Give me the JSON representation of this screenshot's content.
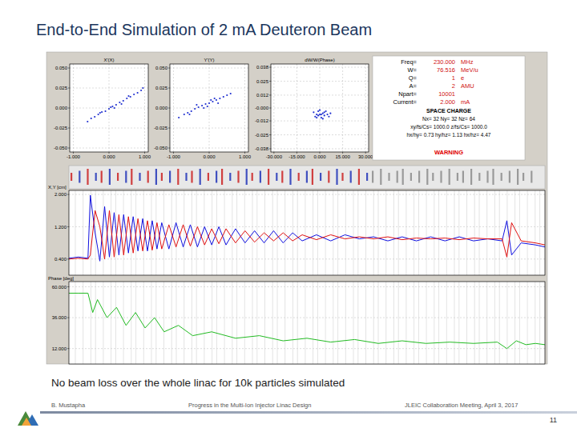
{
  "title": "End-to-End Simulation of 2 mA Deuteron Beam",
  "caption": "No beam loss over the whole linac for 10k particles simulated",
  "footer": {
    "author": "B. Mustapha",
    "talk": "Progress in the Multi-Ion Injector Linac Design",
    "meeting": "JLEIC Collaboration Meeting, April 3, 2017",
    "page": "11"
  },
  "info_panel": {
    "rows": [
      [
        "Freq=",
        "230.000",
        "MHz"
      ],
      [
        "W=",
        "76.516",
        "MeV/u"
      ],
      [
        "Q=",
        "1",
        "e"
      ],
      [
        "A=",
        "2",
        "AMU"
      ],
      [
        "Npart=",
        "10001"
      ],
      [
        "Current=",
        "2.000",
        "mA"
      ]
    ],
    "space_charge": "SPACE CHARGE",
    "space_charge_lines": [
      "Nx= 32  Ny= 32  Nz= 64",
      "xy/fs/Cs= 1000.0  z/fs/Cs= 1000.0",
      "hx/hy= 0.73  hy/hz= 1.13  hx/hz= 4.47"
    ],
    "warning": "WARNING"
  },
  "chart_data": [
    {
      "type": "scatter",
      "title": "X'(X)",
      "color": "#2030d0",
      "marker": "dot",
      "grid": true,
      "x": [
        -0.6,
        -0.5,
        -0.4,
        -0.3,
        -0.2,
        -0.1,
        0,
        0.1,
        0.2,
        0.3,
        0.4,
        0.5,
        0.6,
        0.7,
        0.8,
        0.9,
        0.95,
        0.15,
        0.35,
        0.55,
        -0.25,
        0.05
      ],
      "values": [
        -0.017,
        -0.013,
        -0.011,
        -0.008,
        -0.005,
        -0.004,
        -0.001,
        0.002,
        0.004,
        0.007,
        0.009,
        0.012,
        0.014,
        0.017,
        0.019,
        0.022,
        0.025,
        0.0,
        0.005,
        0.015,
        -0.006,
        0.001
      ],
      "xlim": [
        -1.1,
        1.1
      ],
      "ylim": [
        -0.055,
        0.055
      ],
      "xticks": [
        {
          "value": -1,
          "label": "-1.000"
        },
        {
          "value": 0,
          "label": "0.000"
        },
        {
          "value": 1,
          "label": "1.000"
        }
      ],
      "yticks": [
        {
          "value": 0.05,
          "label": "0.050"
        },
        {
          "value": 0.025,
          "label": "0.025"
        },
        {
          "value": 0,
          "label": "0.000"
        },
        {
          "value": -0.025,
          "label": "-0.025"
        },
        {
          "value": -0.05,
          "label": "-0.050"
        }
      ]
    },
    {
      "type": "scatter",
      "title": "Y'(Y)",
      "color": "#2030d0",
      "marker": "dot",
      "grid": true,
      "x": [
        -0.85,
        -0.7,
        -0.6,
        -0.5,
        -0.4,
        -0.3,
        -0.2,
        -0.1,
        0,
        0.1,
        0.2,
        0.3,
        0.4,
        0.5,
        0.6,
        -0.35,
        -0.15,
        0.05,
        0.25,
        -0.55,
        0.15,
        -0.05
      ],
      "values": [
        -0.012,
        -0.008,
        -0.006,
        -0.004,
        -0.001,
        0.001,
        0.003,
        0.005,
        0.006,
        0.008,
        0.01,
        0.012,
        0.014,
        0.016,
        0.018,
        0.004,
        0.0,
        0.01,
        0.006,
        -0.008,
        0.012,
        0.002
      ],
      "xlim": [
        -1.1,
        1.1
      ],
      "ylim": [
        -0.055,
        0.055
      ],
      "xticks": [
        {
          "value": -1,
          "label": "-1.000"
        },
        {
          "value": 0,
          "label": "0.000"
        },
        {
          "value": 1,
          "label": "1.000"
        }
      ],
      "yticks": [
        {
          "value": 0.05,
          "label": "0.050"
        },
        {
          "value": 0.025,
          "label": "0.025"
        },
        {
          "value": 0,
          "label": "0.000"
        },
        {
          "value": -0.025,
          "label": "-0.025"
        },
        {
          "value": -0.05,
          "label": "-0.050"
        }
      ]
    },
    {
      "type": "scatter",
      "title": "dW/W(Phase)",
      "color": "#2030d0",
      "marker": "dot",
      "grid": true,
      "x": [
        -4,
        -3,
        -2,
        -1,
        0,
        1,
        2,
        3,
        4,
        5,
        6,
        0,
        2,
        -2,
        3,
        1,
        7,
        -1
      ],
      "values": [
        -0.004,
        -0.008,
        -0.006,
        -0.003,
        -0.006,
        -0.009,
        -0.005,
        -0.007,
        -0.003,
        -0.006,
        -0.008,
        -0.002,
        -0.01,
        -0.009,
        -0.004,
        -0.006,
        -0.005,
        -0.007
      ],
      "xlim": [
        -32,
        32
      ],
      "ylim": [
        -0.041,
        0.041
      ],
      "xticks": [
        {
          "value": -30,
          "label": "-30.000"
        },
        {
          "value": -15,
          "label": "-15.000"
        },
        {
          "value": 0,
          "label": "0.000"
        },
        {
          "value": 15,
          "label": "15.000"
        },
        {
          "value": 30,
          "label": "30.000"
        }
      ],
      "yticks": [
        {
          "value": 0.038,
          "label": "0.038"
        },
        {
          "value": 0.025,
          "label": "0.025"
        },
        {
          "value": 0.012,
          "label": "0.012"
        },
        {
          "value": 0,
          "label": "-0.000"
        },
        {
          "value": -0.012,
          "label": "-0.012"
        },
        {
          "value": -0.025,
          "label": "-0.025"
        },
        {
          "value": -0.038,
          "label": "-0.038"
        }
      ]
    },
    {
      "type": "line",
      "y_label": "X,Y [cm]",
      "grid": true,
      "tick_labels": "y",
      "x": [
        0,
        2,
        4,
        4.5,
        5.5,
        6.5,
        7.5,
        8.5,
        9.5,
        10.5,
        11.5,
        12.5,
        13.5,
        14.5,
        15.5,
        16.5,
        17.5,
        18.5,
        19.5,
        21,
        22.5,
        24,
        25.5,
        27,
        28.5,
        30,
        31.5,
        33,
        35,
        37,
        39,
        41,
        43,
        45,
        47,
        49,
        52,
        55,
        58,
        61,
        64,
        67,
        70,
        73,
        76,
        79,
        82,
        85,
        88,
        91,
        92,
        93,
        95,
        98,
        100
      ],
      "series": [
        {
          "color": "#1010e0",
          "line_style": "solid",
          "values": [
            0.42,
            0.45,
            0.42,
            1.98,
            1.05,
            0.35,
            1.7,
            0.45,
            1.55,
            0.5,
            1.5,
            0.55,
            1.45,
            0.6,
            1.4,
            0.6,
            1.35,
            0.65,
            1.3,
            0.65,
            1.3,
            0.7,
            1.25,
            0.7,
            1.2,
            0.75,
            1.2,
            0.75,
            1.15,
            0.8,
            1.1,
            0.8,
            1.1,
            0.8,
            1.05,
            0.85,
            1.0,
            0.85,
            1.0,
            0.9,
            0.95,
            0.85,
            0.95,
            0.85,
            0.95,
            0.85,
            0.95,
            0.85,
            0.9,
            0.85,
            1.35,
            0.5,
            0.8,
            0.75,
            0.7
          ]
        },
        {
          "color": "#e01010",
          "line_style": "solid",
          "values": [
            0.4,
            0.42,
            0.4,
            0.5,
            1.6,
            1.2,
            0.4,
            1.6,
            0.45,
            1.5,
            0.5,
            1.45,
            0.55,
            1.4,
            0.6,
            1.35,
            0.62,
            1.3,
            0.65,
            1.25,
            0.7,
            1.25,
            0.72,
            1.2,
            0.75,
            1.15,
            0.78,
            1.15,
            0.8,
            1.1,
            0.82,
            1.05,
            0.85,
            1.05,
            0.85,
            1.0,
            0.88,
            1.0,
            0.9,
            0.95,
            0.9,
            0.95,
            0.88,
            0.92,
            0.9,
            0.92,
            0.88,
            0.92,
            0.9,
            0.9,
            0.45,
            1.3,
            0.85,
            0.8,
            0.75
          ]
        }
      ],
      "xlim": [
        0,
        100
      ],
      "ylim": [
        0,
        2.1
      ],
      "yticks": [
        {
          "value": 2,
          "label": "2.000"
        },
        {
          "value": 1.2,
          "label": "1.200"
        },
        {
          "value": 0.4,
          "label": "0.400"
        }
      ]
    },
    {
      "type": "line",
      "y_label": "Phase [deg]",
      "grid": true,
      "tick_labels": "y",
      "x": [
        0,
        2,
        4,
        5,
        6,
        8,
        10,
        12,
        14,
        16,
        18,
        20,
        23,
        26,
        30,
        35,
        40,
        45,
        50,
        55,
        60,
        65,
        70,
        75,
        80,
        85,
        90,
        92,
        94,
        96,
        98,
        100
      ],
      "series": [
        {
          "color": "#22bb22",
          "line_style": "solid",
          "values": [
            55,
            55,
            55,
            40,
            50,
            36,
            44,
            30,
            40,
            28,
            36,
            25,
            30,
            22,
            25,
            20,
            22,
            18,
            20,
            17,
            19,
            16,
            18,
            16,
            17,
            16,
            17,
            12,
            18,
            15,
            16,
            15
          ]
        }
      ],
      "xlim": [
        0,
        100
      ],
      "ylim": [
        0,
        64
      ],
      "yticks": [
        {
          "value": 60,
          "label": "60.000"
        },
        {
          "value": 36,
          "label": "36.000"
        },
        {
          "value": 12,
          "label": "12.000"
        }
      ]
    }
  ]
}
